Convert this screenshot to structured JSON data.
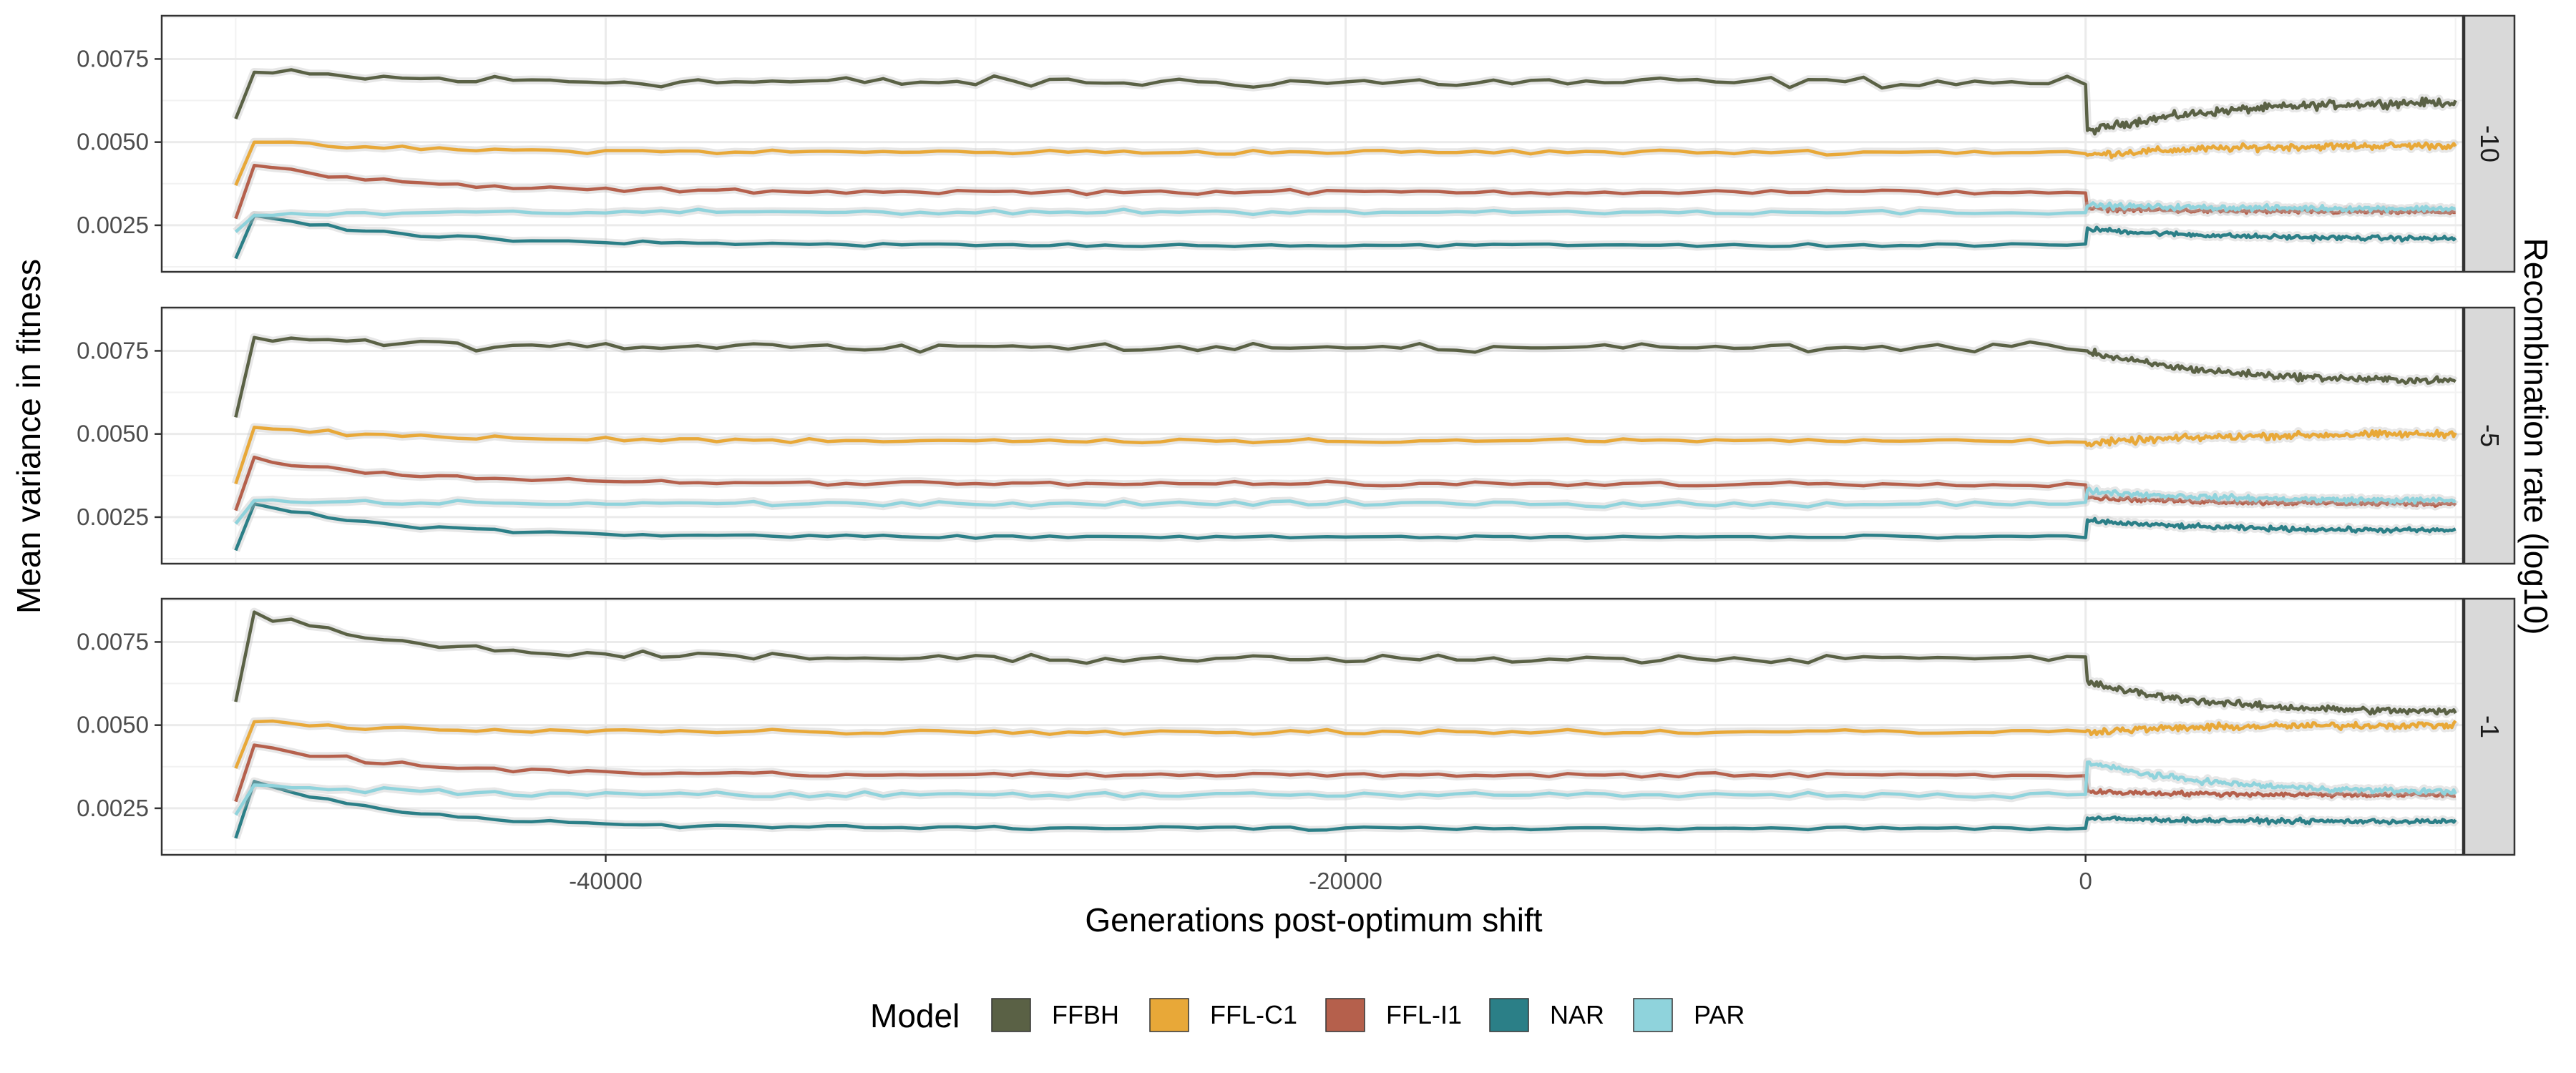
{
  "chart_data": {
    "type": "line",
    "xlabel": "Generations post-optimum shift",
    "ylabel": "Mean variance in fitness",
    "facet_label": "Recombination rate (log10)",
    "xlim": [
      -52000,
      10200
    ],
    "ylim": [
      0.0011,
      0.0088
    ],
    "x_ticks": [
      -40000,
      -20000,
      0
    ],
    "x_tick_labels": [
      "-40000",
      "-20000",
      "0"
    ],
    "y_ticks": [
      0.0025,
      0.005,
      0.0075
    ],
    "y_tick_labels": [
      "0.0025",
      "0.0050",
      "0.0075"
    ],
    "grid": true,
    "legend": {
      "title": "Model",
      "position": "bottom",
      "items": [
        {
          "name": "FFBH",
          "color": "#5a6145"
        },
        {
          "name": "FFL-C1",
          "color": "#e8a838"
        },
        {
          "name": "FFL-I1",
          "color": "#b5604c"
        },
        {
          "name": "NAR",
          "color": "#2b7f87"
        },
        {
          "name": "PAR",
          "color": "#8fd3dc"
        }
      ]
    },
    "x_resolution": {
      "pre_shift_step": 500,
      "post_shift_step": 50,
      "start": -50000,
      "end": 10000
    },
    "panels": [
      {
        "label": "-10",
        "series": [
          {
            "name": "FFBH",
            "start": 0.0057,
            "peak": 0.0071,
            "pre_level": 0.0068,
            "pre_noise": 0.00025,
            "post_start": 0.0053,
            "post_end": 0.0062,
            "post_noise": 0.00018
          },
          {
            "name": "FFL-C1",
            "start": 0.0037,
            "peak": 0.005,
            "pre_level": 0.0047,
            "pre_noise": 0.0001,
            "post_start": 0.0046,
            "post_end": 0.0049,
            "post_noise": 0.00015
          },
          {
            "name": "FFL-I1",
            "start": 0.0027,
            "peak": 0.0043,
            "pre_level": 0.0035,
            "pre_noise": 0.0001,
            "post_start": 0.003,
            "post_end": 0.0029,
            "post_noise": 0.0001
          },
          {
            "name": "NAR",
            "start": 0.0015,
            "peak": 0.0028,
            "pre_level": 0.0019,
            "pre_noise": 8e-05,
            "post_start": 0.0024,
            "post_end": 0.0021,
            "post_noise": 0.0001
          },
          {
            "name": "PAR",
            "start": 0.0023,
            "peak": 0.0028,
            "pre_level": 0.0029,
            "pre_noise": 0.0001,
            "post_start": 0.0031,
            "post_end": 0.003,
            "post_noise": 0.00012
          }
        ]
      },
      {
        "label": "-5",
        "series": [
          {
            "name": "FFBH",
            "start": 0.0055,
            "peak": 0.0079,
            "pre_level": 0.0076,
            "pre_noise": 0.0002,
            "post_start": 0.0075,
            "post_end": 0.0066,
            "post_noise": 0.00015
          },
          {
            "name": "FFL-C1",
            "start": 0.0035,
            "peak": 0.0052,
            "pre_level": 0.0048,
            "pre_noise": 0.0001,
            "post_start": 0.0047,
            "post_end": 0.005,
            "post_noise": 0.00015
          },
          {
            "name": "FFL-I1",
            "start": 0.0027,
            "peak": 0.0043,
            "pre_level": 0.0035,
            "pre_noise": 0.0001,
            "post_start": 0.0031,
            "post_end": 0.0029,
            "post_noise": 0.0001
          },
          {
            "name": "NAR",
            "start": 0.0015,
            "peak": 0.0029,
            "pre_level": 0.0019,
            "pre_noise": 8e-05,
            "post_start": 0.0024,
            "post_end": 0.0021,
            "post_noise": 0.0001
          },
          {
            "name": "PAR",
            "start": 0.0023,
            "peak": 0.003,
            "pre_level": 0.0029,
            "pre_noise": 0.00012,
            "post_start": 0.0033,
            "post_end": 0.003,
            "post_noise": 0.00012
          }
        ]
      },
      {
        "label": "-1",
        "series": [
          {
            "name": "FFBH",
            "start": 0.0057,
            "peak": 0.0084,
            "pre_level": 0.007,
            "pre_noise": 0.00018,
            "post_start": 0.0063,
            "post_end": 0.0054,
            "post_noise": 0.00015
          },
          {
            "name": "FFL-C1",
            "start": 0.0037,
            "peak": 0.0051,
            "pre_level": 0.0048,
            "pre_noise": 0.00012,
            "post_start": 0.0048,
            "post_end": 0.005,
            "post_noise": 0.00015
          },
          {
            "name": "FFL-I1",
            "start": 0.0027,
            "peak": 0.0044,
            "pre_level": 0.0035,
            "pre_noise": 0.0001,
            "post_start": 0.003,
            "post_end": 0.0029,
            "post_noise": 0.0001
          },
          {
            "name": "NAR",
            "start": 0.0016,
            "peak": 0.0033,
            "pre_level": 0.0019,
            "pre_noise": 8e-05,
            "post_start": 0.0022,
            "post_end": 0.0021,
            "post_noise": 0.0001
          },
          {
            "name": "PAR",
            "start": 0.0023,
            "peak": 0.0032,
            "pre_level": 0.0029,
            "pre_noise": 0.00012,
            "post_start": 0.0039,
            "post_end": 0.003,
            "post_noise": 0.00012
          }
        ]
      }
    ]
  }
}
